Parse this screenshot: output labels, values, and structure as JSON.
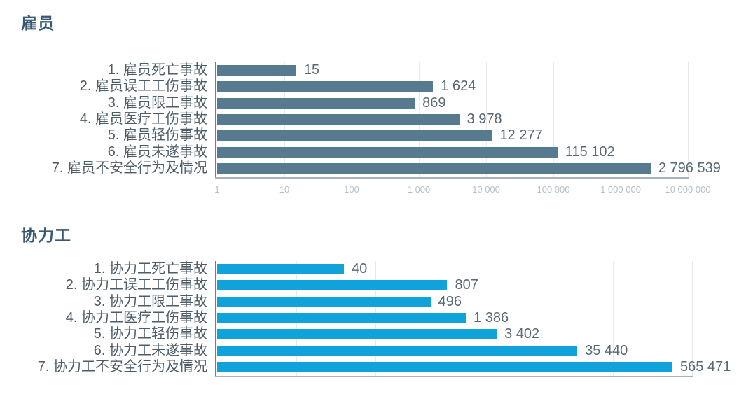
{
  "page": {
    "background": "#ffffff"
  },
  "theme": {
    "title_color": "#3a5a74",
    "category_label_color": "#4e5c68",
    "value_label_color": "#5a6873",
    "grid_color": "#e7ebee",
    "x_axis_color": "#a8b3bb",
    "y_axis_color": "#6d7e8a",
    "tick_label_color": "#b2c0ca"
  },
  "chart_data": [
    {
      "type": "bar",
      "orientation": "horizontal",
      "title": "雇员",
      "bar_color": "#567a8f",
      "categories": [
        "1. 雇员死亡事故",
        "2. 雇员误工工伤事故",
        "3. 雇员限工事故",
        "4. 雇员医疗工伤事故",
        "5. 雇员轻伤事故",
        "6. 雇员未遂事故",
        "7. 雇员不安全行为及情况"
      ],
      "values": [
        15,
        1624,
        869,
        3978,
        12277,
        115102,
        2796539
      ],
      "value_labels": [
        "15",
        "1 624",
        "869",
        "3 978",
        "12 277",
        "115 102",
        "2 796 539"
      ],
      "x_scale": "log",
      "xlim": [
        1,
        10000000
      ],
      "x_tick_labels": [
        "1",
        "10",
        "100",
        "1 000",
        "10 000",
        "100 000",
        "1 000 000",
        "10 000 000"
      ],
      "x_tick_labels_clipped": true,
      "grid": true,
      "legend": "none"
    },
    {
      "type": "bar",
      "orientation": "horizontal",
      "title": "协力工",
      "bar_color": "#10a3db",
      "categories": [
        "1. 协力工死亡事故",
        "2. 协力工误工工伤事故",
        "3. 协力工限工事故",
        "4. 协力工医疗工伤事故",
        "5. 协力工轻伤事故",
        "6. 协力工未遂事故",
        "7. 协力工不安全行为及情况"
      ],
      "values": [
        40,
        807,
        496,
        1386,
        3402,
        35440,
        565471
      ],
      "value_labels": [
        "40",
        "807",
        "496",
        "1 386",
        "3 402",
        "35 440",
        "565 471"
      ],
      "x_scale": "log",
      "xlim": [
        1,
        1000000
      ],
      "x_tick_labels": [],
      "x_tick_labels_clipped": false,
      "grid": true,
      "legend": "none"
    }
  ]
}
